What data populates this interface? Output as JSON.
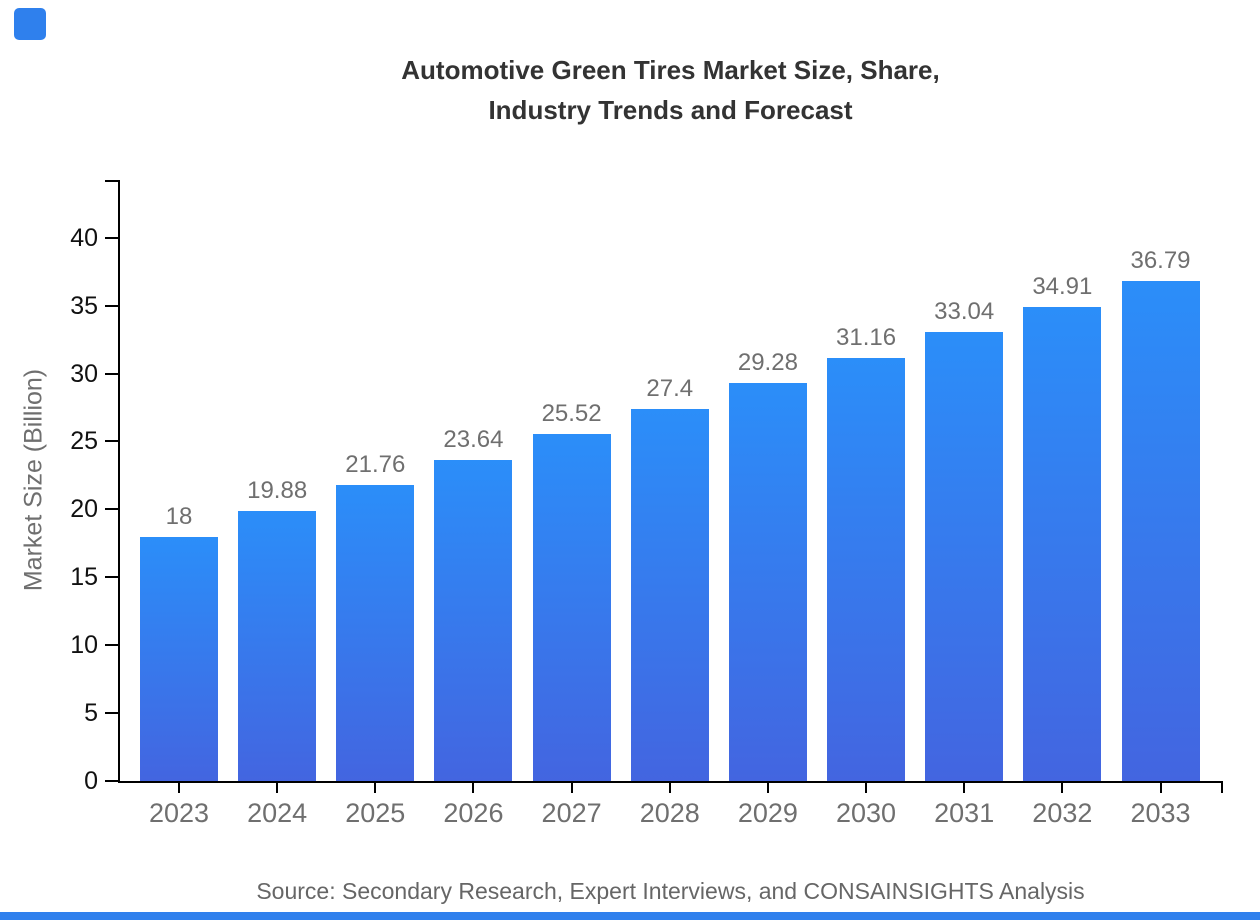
{
  "header": {
    "title_line1": "Automotive Green Tires Market Size, Share,",
    "title_line2": "Industry Trends and Forecast"
  },
  "footer": {
    "source": "Source: Secondary Research, Expert Interviews, and CONSAINSIGHTS Analysis"
  },
  "branding": {
    "accent_color": "#2f80ed"
  },
  "colors": {
    "title_text": "#333333",
    "axis_line": "#000000",
    "y_tick_label": "#111111",
    "muted_text": "#6f6f6f",
    "bar_gradient_top": "#2b8ef9",
    "bar_gradient_bottom": "#4365e0"
  },
  "chart_data": {
    "type": "bar",
    "title": "Automotive Green Tires Market Size, Share, Industry Trends and Forecast",
    "xlabel": "",
    "ylabel": "Market Size (Billion)",
    "categories": [
      "2023",
      "2024",
      "2025",
      "2026",
      "2027",
      "2028",
      "2029",
      "2030",
      "2031",
      "2032",
      "2033"
    ],
    "values": [
      18,
      19.88,
      21.76,
      23.64,
      25.52,
      27.4,
      29.28,
      31.16,
      33.04,
      34.91,
      36.79
    ],
    "yticks": [
      0,
      5,
      10,
      15,
      20,
      25,
      30,
      35,
      40
    ],
    "ylim": [
      0,
      44.25
    ],
    "grid": false,
    "legend_position": "none",
    "bar_gradient_top": "#2b8ef9",
    "bar_gradient_bottom": "#4365e0",
    "source": "Source: Secondary Research, Expert Interviews, and CONSAINSIGHTS Analysis"
  }
}
